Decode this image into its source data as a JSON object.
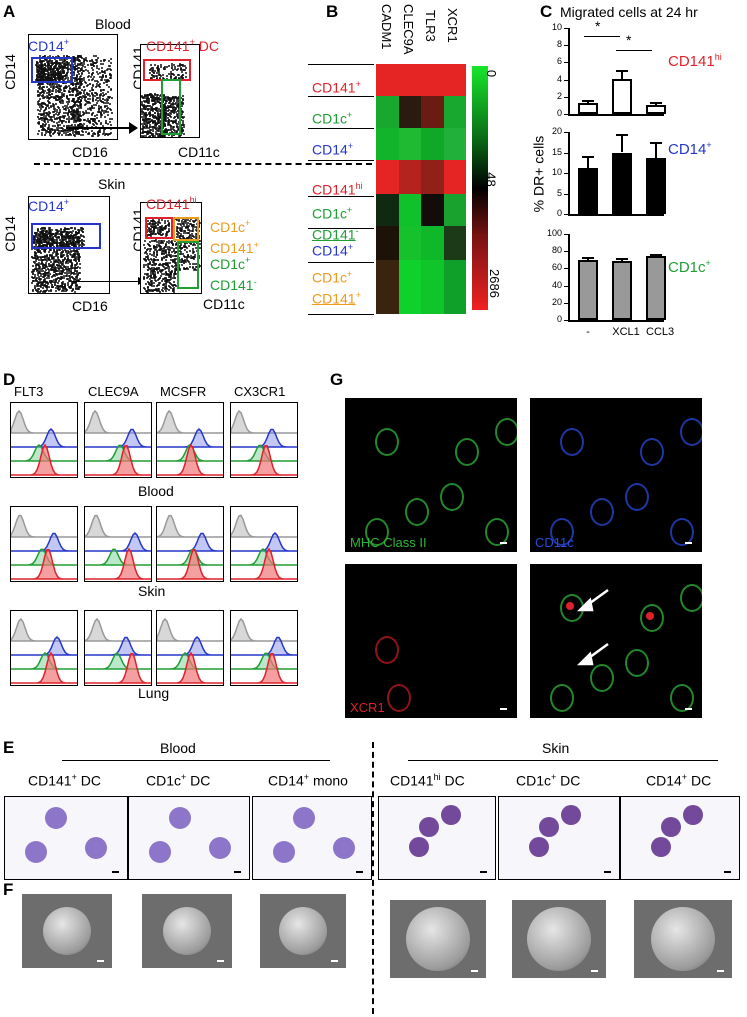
{
  "panel_A": {
    "label": "A",
    "blood_title": "Blood",
    "skin_title": "Skin",
    "blood_left": {
      "ylabel": "CD14",
      "xlabel": "CD16",
      "gate_label": "CD14",
      "gate_sup": "+"
    },
    "blood_right": {
      "ylabel": "CD141",
      "xlabel": "CD11c",
      "gate_label": "CD141",
      "gate_sup": "+",
      "gate_suffix": " DC"
    },
    "skin_left": {
      "ylabel": "CD14",
      "xlabel": "CD16",
      "gate_label": "CD14",
      "gate_sup": "+"
    },
    "skin_right": {
      "ylabel": "CD141",
      "xlabel": "CD11c",
      "gate_hi": "CD141",
      "gate_hi_sup": "hi",
      "gate_orange_1": "CD1c",
      "gate_orange_1_sup": "+",
      "gate_orange_2": "CD141",
      "gate_orange_2_sup": "+",
      "gate_green_1": "CD1c",
      "gate_green_1_sup": "+",
      "gate_green_2": "CD141",
      "gate_green_2_sup": "-"
    }
  },
  "panel_B": {
    "label": "B",
    "columns": [
      "CADM1",
      "CLEC9A",
      "TLR3",
      "XCR1"
    ],
    "rows": [
      {
        "name": "CD141",
        "sup": "+",
        "color": "#e0202a"
      },
      {
        "name": "CD1c",
        "sup": "+",
        "color": "#1e9e34"
      },
      {
        "name": "CD14",
        "sup": "+",
        "color": "#2536c9"
      },
      {
        "name": "CD141",
        "sup": "hi",
        "color": "#e0202a"
      },
      {
        "name": "CD1c",
        "sup": "+",
        "name2": "CD141",
        "sup2": "-",
        "color": "#1e9e34"
      },
      {
        "name": "CD14",
        "sup": "+",
        "color": "#2536c9"
      },
      {
        "name": "CD1c",
        "sup": "+",
        "name2": "CD141",
        "sup2": "+",
        "color": "#ee9a1c"
      }
    ],
    "scale_ticks": [
      "0",
      "48",
      "2686"
    ],
    "heatmap_colors": [
      [
        "#e52424",
        "#e52424",
        "#e52424",
        "#e52424"
      ],
      [
        "#17a82d",
        "#2a1a10",
        "#6a1b12",
        "#18a82f"
      ],
      [
        "#11b42a",
        "#1fba32",
        "#10a827",
        "#21b03a"
      ],
      [
        "#e52424",
        "#b5231f",
        "#902018",
        "#e52424"
      ],
      [
        "#102a12",
        "#0fc12a",
        "#120d08",
        "#19a22e"
      ],
      [
        "#1c1208",
        "#15c22b",
        "#0fb829",
        "#1c3a18"
      ],
      [
        "#3a2410",
        "#0fd12c",
        "#10c52a",
        "#0ea028"
      ]
    ]
  },
  "panel_C": {
    "label": "C",
    "title": "Migrated cells at 24 hr",
    "ylabel": "% DR+ cells",
    "categories": [
      "-",
      "XCL1",
      "CCL3"
    ],
    "significance": [
      "*",
      "*"
    ],
    "subplots": [
      {
        "label": "CD141",
        "label_sup": "hi",
        "label_color": "#e0202a",
        "fill": "#ffffff",
        "ylim": [
          0,
          10
        ],
        "ticks": [
          "0",
          "2",
          "4",
          "6",
          "8",
          "10"
        ],
        "values": [
          1.3,
          4.1,
          1.0
        ],
        "errors": [
          0.3,
          1.0,
          0.4
        ]
      },
      {
        "label": "CD14",
        "label_sup": "+",
        "label_color": "#2536c9",
        "fill": "#000000",
        "ylim": [
          0,
          20
        ],
        "ticks": [
          "0",
          "5",
          "10",
          "15",
          "20"
        ],
        "values": [
          11.2,
          15.0,
          13.6
        ],
        "errors": [
          3.0,
          4.5,
          4.0
        ]
      },
      {
        "label": "CD1c",
        "label_sup": "+",
        "label_color": "#1e9e34",
        "fill": "#999999",
        "ylim": [
          0,
          100
        ],
        "ticks": [
          "0",
          "20",
          "40",
          "60",
          "80",
          "100"
        ],
        "values": [
          70,
          69,
          74
        ],
        "errors": [
          3,
          3,
          3
        ]
      }
    ]
  },
  "panel_D": {
    "label": "D",
    "markers": [
      "FLT3",
      "CLEC9A",
      "MCSFR",
      "CX3CR1"
    ],
    "tissues": [
      "Blood",
      "Skin",
      "Lung"
    ]
  },
  "panel_E": {
    "label": "E",
    "group_left": "Blood",
    "group_right": "Skin",
    "cells": [
      {
        "name": "CD141",
        "sup": "+",
        "suffix": " DC"
      },
      {
        "name": "CD1c",
        "sup": "+",
        "suffix": " DC"
      },
      {
        "name": "CD14",
        "sup": "+",
        "suffix": " mono"
      },
      {
        "name": "CD141",
        "sup": "hi",
        "suffix": " DC"
      },
      {
        "name": "CD1c",
        "sup": "+",
        "suffix": " DC"
      },
      {
        "name": "CD14",
        "sup": "+",
        "suffix": " DC"
      }
    ]
  },
  "panel_F": {
    "label": "F"
  },
  "panel_G": {
    "label": "G",
    "channels": [
      "MHC Class II",
      "CD11c",
      "XCR1"
    ],
    "channel_colors": [
      "#2fb43a",
      "#2a4ad8",
      "#e0202a"
    ]
  }
}
